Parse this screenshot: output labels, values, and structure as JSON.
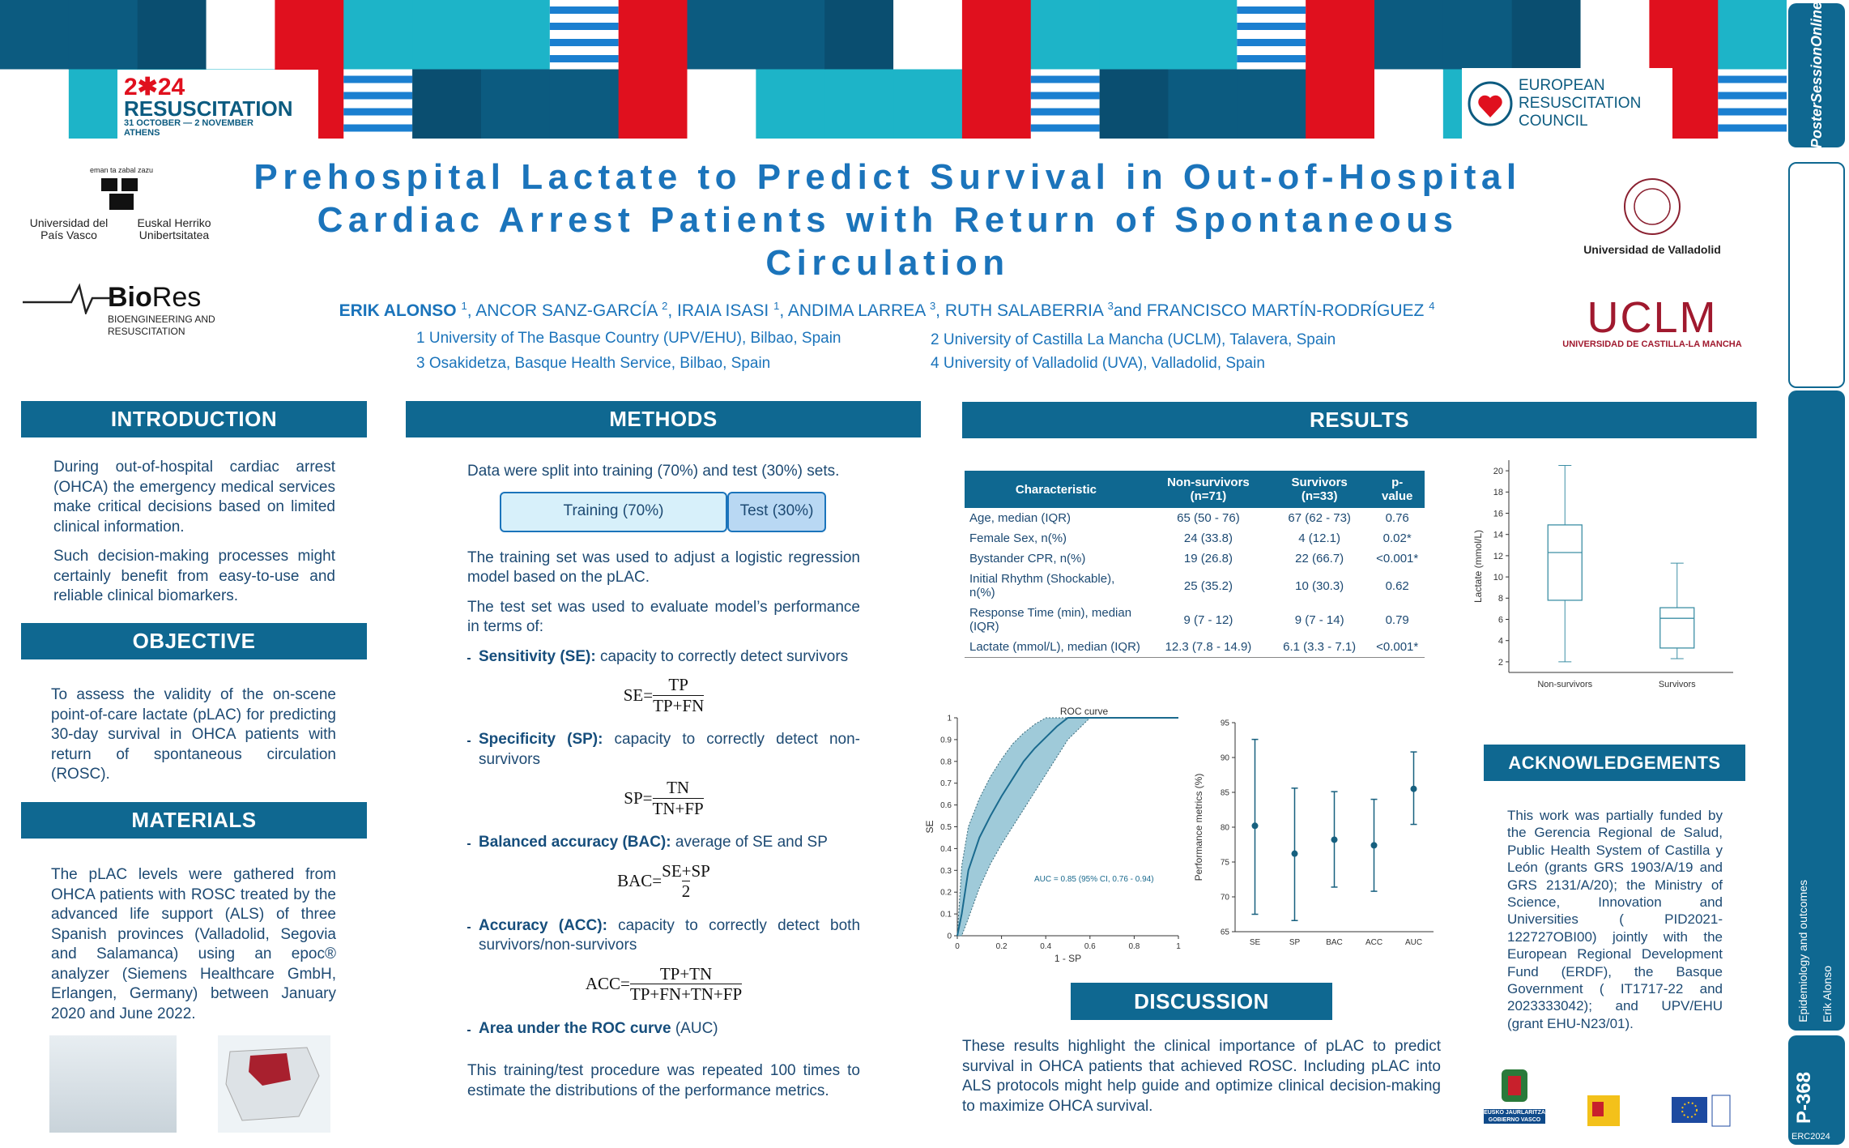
{
  "event_logo": {
    "year": "2✱24",
    "name": "RESUSCITATION",
    "dates": "31 OCTOBER — 2 NOVEMBER",
    "city": "ATHENS"
  },
  "erc_logo": [
    "EUROPEAN",
    "RESUSCITATION",
    "COUNCIL"
  ],
  "sidebar": {
    "brand": "PosterSessionOnline",
    "topic": "Epidemiology and outcomes",
    "author": "Erik Alonso",
    "poster_id": "P-368",
    "event": "ERC2024"
  },
  "logos": {
    "upv_motto": "eman ta zabal zazu",
    "upv_es": "Universidad del País Vasco",
    "upv_eu": "Euskal Herriko Unibertsitatea",
    "biores": [
      "Bio",
      "Res"
    ],
    "biores_sub": "BIOENGINEERING AND RESUSCITATION",
    "uva": "Universidad de Valladolid",
    "uclm": "UCLM",
    "uclm_sub": "UNIVERSIDAD DE CASTILLA-LA MANCHA",
    "funders": [
      "EUSKO JAURLARITZA",
      "GOBIERNO VASCO"
    ]
  },
  "header": {
    "title": "Prehospital Lactate to Predict Survival in Out-of-Hospital Cardiac Arrest Patients with Return of Spontaneous Circulation",
    "authors": [
      {
        "name": "ERIK ALONSO",
        "sup": "1",
        "sep": ","
      },
      {
        "name": "ANCOR SANZ-GARCÍA",
        "sup": "2",
        "sep": ","
      },
      {
        "name": "IRAIA ISASI",
        "sup": "1",
        "sep": ","
      },
      {
        "name": "ANDIMA LARREA",
        "sup": "3",
        "sep": ","
      },
      {
        "name": "RUTH SALABERRIA",
        "sup": "3",
        "sep": "and"
      },
      {
        "name": "FRANCISCO MARTÍN-RODRÍGUEZ",
        "sup": "4"
      }
    ],
    "affiliations": [
      "1 University of The Basque Country (UPV/EHU), Bilbao, Spain",
      "2 University of Castilla La Mancha (UCLM), Talavera, Spain",
      "3 Osakidetza, Basque Health Service, Bilbao, Spain",
      "4 University of Valladolid (UVA), Valladolid, Spain"
    ]
  },
  "sections": {
    "introduction": {
      "heading": "INTRODUCTION",
      "paragraphs": [
        "During out-of-hospital cardiac arrest (OHCA) the emergency medical services make critical decisions based on limited clinical information.",
        "Such decision-making processes might certainly benefit from easy-to-use and reliable clinical biomarkers."
      ]
    },
    "objective": {
      "heading": "OBJECTIVE",
      "paragraphs": [
        "To assess the validity of the on-scene point-of-care lactate (pLAC) for predicting 30-day survival in OHCA patients with return of spontaneous circulation (ROSC)."
      ]
    },
    "materials": {
      "heading": "MATERIALS",
      "paragraphs": [
        "The pLAC levels were gathered from OHCA patients with ROSC treated by the advanced life support (ALS) of three Spanish provinces (Valladolid, Segovia and Salamanca) using an epoc® analyzer (Siemens Healthcare GmbH, Erlangen, Germany) between January 2020 and June 2022."
      ]
    },
    "methods": {
      "heading": "METHODS",
      "intro": "Data were split into training (70%) and test (30%) sets.",
      "split": [
        "Training (70%)",
        "Test (30%)"
      ],
      "paragraphs": [
        "The training set was used to adjust a logistic regression model based on the pLAC.",
        "The test set was used to evaluate model’s performance in terms of:"
      ],
      "bullets": [
        {
          "term": "Sensitivity (SE):",
          "text": "capacity to correctly detect survivors",
          "formula": {
            "lhs": "SE=",
            "num": "TP",
            "den": "TP+FN"
          }
        },
        {
          "term": "Specificity (SP):",
          "text": "capacity to correctly detect non-survivors",
          "formula": {
            "lhs": "SP=",
            "num": "TN",
            "den": "TN+FP"
          }
        },
        {
          "term": "Balanced accuracy (BAC):",
          "text": "average of SE and SP",
          "formula": {
            "lhs": "BAC=",
            "num": "SE+SP",
            "den": "2"
          }
        },
        {
          "term": "Accuracy (ACC):",
          "text": "capacity to correctly detect both survivors/non-survivors",
          "formula": {
            "lhs": "ACC=",
            "num": "TP+TN",
            "den": "TP+FN+TN+FP"
          }
        },
        {
          "term": "Area under the ROC curve",
          "text": "(AUC)"
        }
      ],
      "closing": "This training/test procedure was repeated 100 times to estimate the distributions of the performance metrics."
    },
    "results": {
      "heading": "RESULTS",
      "table": {
        "columns": [
          "Characteristic",
          "Non-survivors (n=71)",
          "Survivors (n=33)",
          "p-value"
        ],
        "rows": [
          [
            "Age, median (IQR)",
            "65 (50 - 76)",
            "67 (62 - 73)",
            "0.76"
          ],
          [
            "Female Sex, n(%)",
            "24 (33.8)",
            "4 (12.1)",
            "0.02*"
          ],
          [
            "Bystander CPR, n(%)",
            "19 (26.8)",
            "22 (66.7)",
            "<0.001*"
          ],
          [
            "Initial Rhythm (Shockable), n(%)",
            "25 (35.2)",
            "10 (30.3)",
            "0.62"
          ],
          [
            "Response Time (min), median (IQR)",
            "9 (7 - 12)",
            "9 (7 - 14)",
            "0.79"
          ],
          [
            "Lactate (mmol/L), median (IQR)",
            "12.3 (7.8 - 14.9)",
            "6.1 (3.3 - 7.1)",
            "<0.001*"
          ]
        ]
      }
    },
    "discussion": {
      "heading": "DISCUSSION",
      "text": "These results highlight the clinical importance of pLAC to predict survival in OHCA patients that achieved ROSC. Including pLAC into ALS protocols might help guide and optimize clinical decision-making to maximize OHCA survival."
    },
    "acknowledgements": {
      "heading": "ACKNOWLEDGEMENTS",
      "text": "This work was partially funded by the Gerencia Regional de Salud, Public Health System of Castilla y León (grants GRS 1903/A/19 and GRS 2131/A/20); the Ministry of Science, Innovation and Universities ( PID2021-122727OBI00) jointly with the European Regional Development Fund (ERDF), the Basque Government ( IT1717-22 and 2023333042); and UPV/EHU (grant EHU-N23/01)."
    }
  },
  "chart_data": [
    {
      "type": "box",
      "categories": [
        "Non-survivors",
        "Survivors"
      ],
      "ylabel": "Lactate (mmol/L)",
      "ylim": [
        1,
        21
      ],
      "yticks": [
        2,
        4,
        6,
        8,
        10,
        12,
        14,
        16,
        18,
        20
      ],
      "color": "#3d8fa5",
      "min": [
        2.0,
        2.3
      ],
      "q1": [
        7.8,
        3.3
      ],
      "median": [
        12.3,
        6.1
      ],
      "q3": [
        14.9,
        7.1
      ],
      "max": [
        20.5,
        11.3
      ]
    },
    {
      "type": "roc",
      "title": "ROC curve",
      "xlabel": "1 - SP",
      "ylabel": "SE",
      "annotation": "AUC = 0.85 (95% CI, 0.76 - 0.94)",
      "xlim": [
        0,
        1
      ],
      "ylim": [
        0,
        1
      ],
      "xticks": [
        0,
        0.2,
        0.4,
        0.6,
        0.8,
        1
      ],
      "yticks": [
        0,
        0.1,
        0.2,
        0.3,
        0.4,
        0.5,
        0.6,
        0.7,
        0.8,
        0.9,
        1
      ],
      "color": "#1a6a8e",
      "band_color": "#7fb8cc",
      "x": [
        0,
        0.02,
        0.05,
        0.1,
        0.15,
        0.2,
        0.25,
        0.3,
        0.35,
        0.4,
        0.45,
        0.5,
        0.6,
        1
      ],
      "values": [
        0,
        0.1,
        0.3,
        0.45,
        0.55,
        0.64,
        0.72,
        0.8,
        0.86,
        0.91,
        0.96,
        1,
        1,
        1
      ],
      "lower": [
        0,
        0,
        0.08,
        0.22,
        0.33,
        0.42,
        0.5,
        0.58,
        0.66,
        0.74,
        0.82,
        0.9,
        1,
        1
      ],
      "upper": [
        0,
        0.32,
        0.5,
        0.63,
        0.73,
        0.81,
        0.88,
        0.93,
        0.97,
        1,
        1,
        1,
        1,
        1
      ]
    },
    {
      "type": "errorbar",
      "categories": [
        "SE",
        "SP",
        "BAC",
        "ACC",
        "AUC"
      ],
      "ylabel": "Performance metrics (%)",
      "ylim": [
        65,
        95
      ],
      "yticks": [
        65,
        70,
        75,
        80,
        85,
        90,
        95
      ],
      "color": "#17607f",
      "values": [
        80.2,
        76.2,
        78.2,
        77.4,
        85.5
      ],
      "lower": [
        67.5,
        66.6,
        71.4,
        70.8,
        80.4
      ],
      "upper": [
        92.6,
        85.6,
        85.1,
        84.0,
        90.8
      ]
    }
  ]
}
